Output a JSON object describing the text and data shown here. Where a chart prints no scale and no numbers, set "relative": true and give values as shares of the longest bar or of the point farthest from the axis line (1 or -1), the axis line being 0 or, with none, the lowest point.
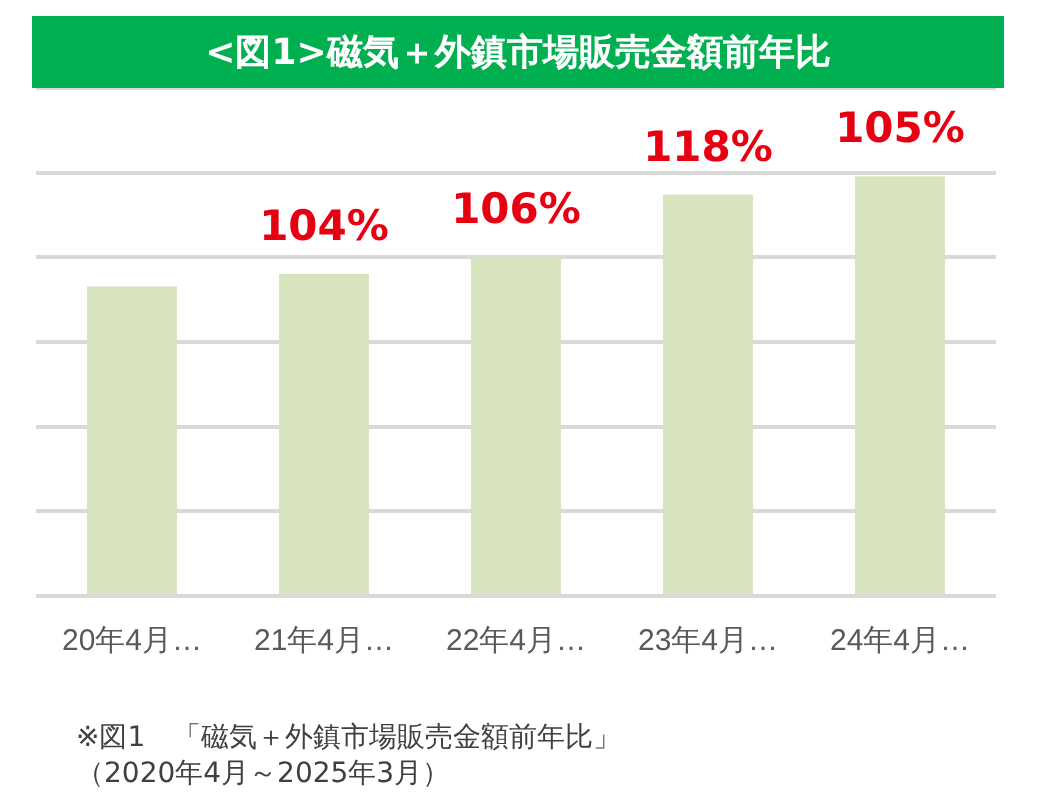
{
  "chart_data": {
    "type": "bar",
    "title": "<図1>磁気＋外鎮市場販売金額前年比",
    "categories": [
      "20年4月…",
      "21年4月…",
      "22年4月…",
      "23年4月…",
      "24年4月…"
    ],
    "values": [
      0.737,
      0.767,
      0.807,
      0.956,
      1
    ],
    "color": "#d7e4bd",
    "relative": true,
    "grid": "y",
    "annotations": [
      "104%",
      "106%",
      "118%",
      "105%",
      "※図1　「磁気＋外鎮市場販売金額前年比」（2020年4月～2025年3月）"
    ]
  }
}
